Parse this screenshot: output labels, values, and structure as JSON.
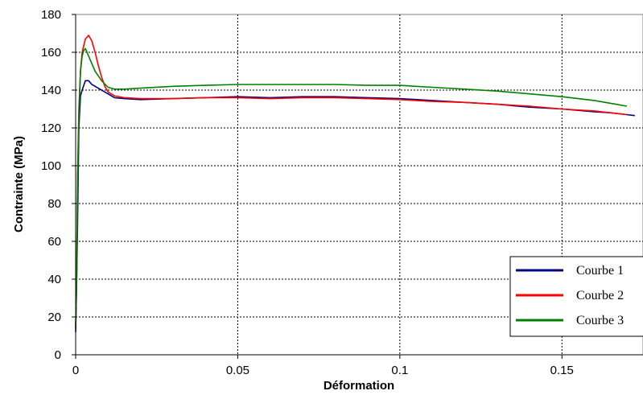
{
  "chart_data": {
    "type": "line",
    "title": "",
    "xlabel": "Déformation",
    "ylabel": "Contrainte (MPa)",
    "xlim": [
      0,
      0.175
    ],
    "ylim": [
      0,
      180
    ],
    "x_ticks": [
      0,
      0.05,
      0.1,
      0.15
    ],
    "x_tick_labels": [
      "0",
      "0.05",
      "0.1",
      "0.15"
    ],
    "y_ticks": [
      0,
      20,
      40,
      60,
      80,
      100,
      120,
      140,
      160,
      180
    ],
    "y_tick_labels": [
      "0",
      "20",
      "40",
      "60",
      "80",
      "100",
      "120",
      "140",
      "160",
      "180"
    ],
    "grid": true,
    "legend_position": "bottom-right",
    "series": [
      {
        "name": "Courbe 1",
        "color": "#000080",
        "x": [
          0,
          0.0003,
          0.0006,
          0.001,
          0.0015,
          0.002,
          0.003,
          0.004,
          0.005,
          0.006,
          0.008,
          0.01,
          0.012,
          0.015,
          0.02,
          0.03,
          0.04,
          0.05,
          0.06,
          0.07,
          0.08,
          0.09,
          0.1,
          0.11,
          0.12,
          0.13,
          0.14,
          0.15,
          0.16,
          0.165,
          0.17,
          0.1725
        ],
        "y": [
          12,
          36,
          70,
          120,
          137,
          140,
          145,
          145,
          143,
          142,
          140,
          138,
          136,
          135.5,
          135,
          135.5,
          136,
          136.5,
          136,
          136.5,
          136.5,
          136,
          135.5,
          134.5,
          133.5,
          132.5,
          131,
          130,
          128.5,
          128,
          127,
          126.5
        ]
      },
      {
        "name": "Courbe 2",
        "color": "#ff0000",
        "x": [
          0,
          0.0003,
          0.0006,
          0.001,
          0.0015,
          0.002,
          0.003,
          0.004,
          0.005,
          0.006,
          0.007,
          0.008,
          0.009,
          0.01,
          0.012,
          0.015,
          0.02,
          0.03,
          0.04,
          0.05,
          0.06,
          0.07,
          0.08,
          0.09,
          0.1,
          0.11,
          0.12,
          0.13,
          0.14,
          0.15,
          0.16,
          0.165,
          0.17
        ],
        "y": [
          14,
          40,
          95,
          130,
          150,
          160,
          167,
          169,
          166,
          160,
          153,
          147,
          142,
          139,
          137,
          136,
          135.5,
          135.5,
          136,
          136,
          135.5,
          136,
          136,
          135.5,
          135,
          134,
          133.5,
          132.5,
          131.5,
          130,
          129,
          128,
          127
        ]
      },
      {
        "name": "Courbe 3",
        "color": "#008000",
        "x": [
          0,
          0.0003,
          0.0006,
          0.001,
          0.0015,
          0.002,
          0.0025,
          0.003,
          0.004,
          0.005,
          0.006,
          0.008,
          0.01,
          0.012,
          0.015,
          0.02,
          0.03,
          0.04,
          0.05,
          0.06,
          0.07,
          0.08,
          0.09,
          0.1,
          0.11,
          0.12,
          0.13,
          0.14,
          0.15,
          0.16,
          0.165,
          0.17
        ],
        "y": [
          15,
          40,
          90,
          125,
          150,
          158,
          161,
          162,
          158,
          154,
          150,
          145,
          141.5,
          140.5,
          140.5,
          141,
          142,
          142.5,
          143,
          143,
          143,
          143,
          142.5,
          142.5,
          141.5,
          140.5,
          139.5,
          138,
          136.5,
          134.5,
          133,
          131.5
        ]
      }
    ]
  }
}
